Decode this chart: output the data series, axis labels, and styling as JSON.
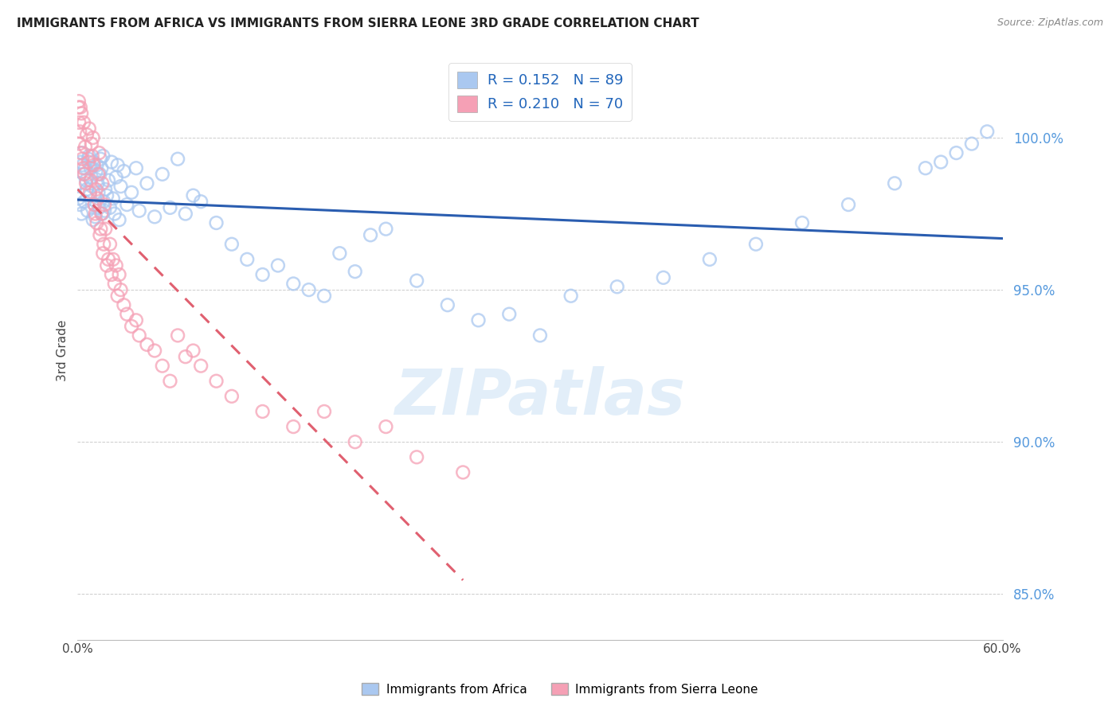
{
  "title": "IMMIGRANTS FROM AFRICA VS IMMIGRANTS FROM SIERRA LEONE 3RD GRADE CORRELATION CHART",
  "source": "Source: ZipAtlas.com",
  "ylabel": "3rd Grade",
  "yticks": [
    85.0,
    90.0,
    95.0,
    100.0
  ],
  "ytick_labels": [
    "85.0%",
    "90.0%",
    "95.0%",
    "100.0%"
  ],
  "xlim": [
    0.0,
    60.0
  ],
  "ylim": [
    83.5,
    102.5
  ],
  "series_africa": {
    "label": "Immigrants from Africa",
    "R": 0.152,
    "N": 89,
    "color": "#aac8f0",
    "edge_color": "#aac8f0",
    "trend_color": "#2a5db0"
  },
  "series_sierra": {
    "label": "Immigrants from Sierra Leone",
    "R": 0.21,
    "N": 70,
    "color": "#f5a0b5",
    "edge_color": "#f5a0b5",
    "trend_color": "#e06070"
  },
  "legend_text1": "R = 0.152   N = 89",
  "legend_text2": "R = 0.210   N = 70",
  "watermark": "ZIPatlas",
  "background_color": "#ffffff",
  "grid_color": "#cccccc",
  "scatter_size": 130,
  "scatter_alpha": 0.45,
  "trend_linewidth": 2.2,
  "africa_x": [
    0.1,
    0.2,
    0.15,
    0.05,
    0.3,
    0.4,
    0.25,
    0.5,
    0.6,
    0.35,
    0.45,
    0.55,
    0.7,
    0.8,
    0.65,
    0.75,
    0.9,
    1.0,
    0.85,
    0.95,
    1.1,
    1.2,
    1.05,
    1.15,
    1.3,
    1.4,
    1.25,
    1.35,
    1.5,
    1.6,
    1.45,
    1.55,
    1.7,
    1.8,
    1.65,
    1.75,
    1.9,
    2.0,
    2.1,
    2.2,
    2.3,
    2.4,
    2.5,
    2.6,
    2.7,
    2.8,
    3.0,
    3.2,
    3.5,
    3.8,
    4.0,
    4.5,
    5.0,
    5.5,
    6.0,
    6.5,
    7.0,
    7.5,
    8.0,
    9.0,
    10.0,
    11.0,
    12.0,
    13.0,
    14.0,
    15.0,
    16.0,
    17.0,
    18.0,
    19.0,
    20.0,
    22.0,
    24.0,
    26.0,
    28.0,
    30.0,
    32.0,
    35.0,
    38.0,
    41.0,
    44.0,
    47.0,
    50.0,
    53.0,
    55.0,
    56.0,
    57.0,
    58.0,
    59.0
  ],
  "africa_y": [
    98.5,
    99.2,
    97.8,
    98.0,
    99.5,
    98.8,
    97.5,
    99.0,
    98.3,
    99.1,
    97.9,
    98.6,
    99.3,
    98.1,
    97.6,
    99.4,
    98.7,
    97.3,
    99.0,
    98.4,
    97.8,
    98.9,
    99.2,
    97.4,
    98.5,
    97.7,
    99.1,
    98.2,
    99.3,
    97.5,
    98.8,
    99.0,
    97.9,
    98.3,
    99.4,
    97.6,
    98.1,
    98.6,
    97.7,
    99.2,
    98.0,
    97.5,
    98.7,
    99.1,
    97.3,
    98.4,
    98.9,
    97.8,
    98.2,
    99.0,
    97.6,
    98.5,
    97.4,
    98.8,
    97.7,
    99.3,
    97.5,
    98.1,
    97.9,
    97.2,
    96.5,
    96.0,
    95.5,
    95.8,
    95.2,
    95.0,
    94.8,
    96.2,
    95.6,
    96.8,
    97.0,
    95.3,
    94.5,
    94.0,
    94.2,
    93.5,
    94.8,
    95.1,
    95.4,
    96.0,
    96.5,
    97.2,
    97.8,
    98.5,
    99.0,
    99.2,
    99.5,
    99.8,
    100.2
  ],
  "sierra_x": [
    0.05,
    0.1,
    0.08,
    0.12,
    0.15,
    0.2,
    0.18,
    0.25,
    0.3,
    0.35,
    0.4,
    0.45,
    0.5,
    0.6,
    0.55,
    0.7,
    0.75,
    0.8,
    0.9,
    1.0,
    0.85,
    0.95,
    1.1,
    1.2,
    1.05,
    1.15,
    1.3,
    1.4,
    1.25,
    1.35,
    1.5,
    1.6,
    1.45,
    1.55,
    1.7,
    1.8,
    1.65,
    1.75,
    1.9,
    2.0,
    2.1,
    2.2,
    2.3,
    2.4,
    2.5,
    2.6,
    2.7,
    2.8,
    3.0,
    3.2,
    3.5,
    3.8,
    4.0,
    4.5,
    5.0,
    5.5,
    6.0,
    6.5,
    7.0,
    7.5,
    8.0,
    9.0,
    10.0,
    12.0,
    14.0,
    16.0,
    18.0,
    20.0,
    22.0,
    25.0
  ],
  "sierra_y": [
    101.0,
    100.5,
    101.2,
    99.8,
    100.2,
    99.5,
    101.0,
    100.8,
    99.3,
    99.0,
    100.5,
    98.8,
    99.7,
    100.1,
    98.5,
    99.2,
    100.3,
    98.2,
    99.8,
    100.0,
    98.6,
    99.4,
    97.8,
    98.3,
    99.1,
    97.5,
    98.0,
    99.5,
    97.2,
    98.8,
    97.0,
    98.5,
    96.8,
    97.5,
    96.5,
    97.0,
    96.2,
    97.8,
    95.8,
    96.0,
    96.5,
    95.5,
    96.0,
    95.2,
    95.8,
    94.8,
    95.5,
    95.0,
    94.5,
    94.2,
    93.8,
    94.0,
    93.5,
    93.2,
    93.0,
    92.5,
    92.0,
    93.5,
    92.8,
    93.0,
    92.5,
    92.0,
    91.5,
    91.0,
    90.5,
    91.0,
    90.0,
    90.5,
    89.5,
    89.0
  ]
}
